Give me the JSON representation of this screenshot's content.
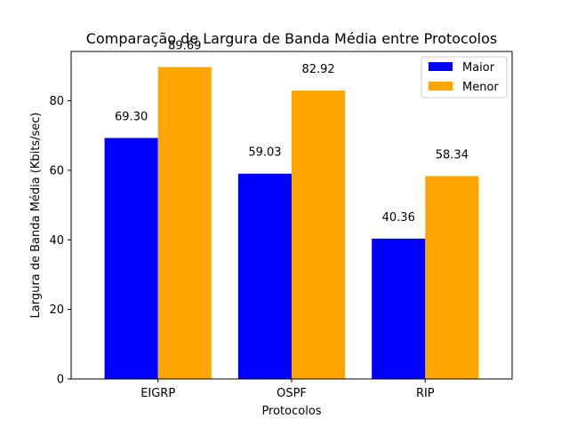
{
  "chart_data": {
    "type": "bar",
    "title": "Comparação de Largura de Banda Média entre Protocolos",
    "xlabel": "Protocolos",
    "ylabel": "Largura de Banda Média (Kbits/sec)",
    "categories": [
      "EIGRP",
      "OSPF",
      "RIP"
    ],
    "series": [
      {
        "name": "Maior",
        "color": "#0000ff",
        "values": [
          69.3,
          59.03,
          40.36
        ],
        "labels": [
          "69.30",
          "59.03",
          "40.36"
        ]
      },
      {
        "name": "Menor",
        "color": "#ffa500",
        "values": [
          89.69,
          82.92,
          58.34
        ],
        "labels": [
          "89.69",
          "82.92",
          "58.34"
        ]
      }
    ],
    "ylim": [
      0,
      94.17
    ],
    "yticks": [
      0,
      20,
      40,
      60,
      80
    ],
    "legend": "upper-right",
    "grid": false
  }
}
